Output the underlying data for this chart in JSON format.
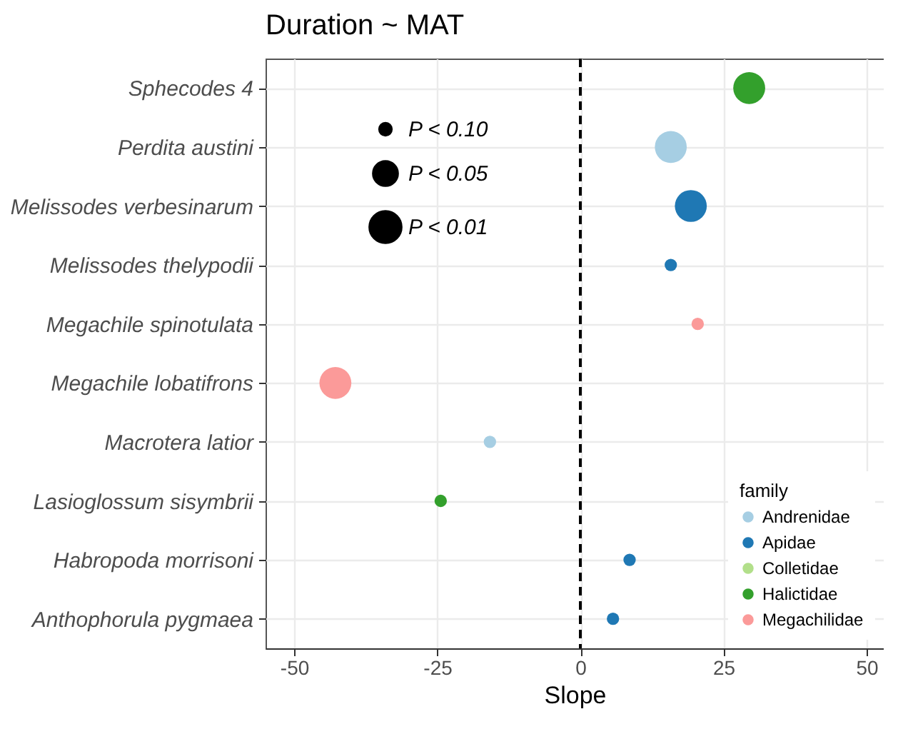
{
  "chart_data": {
    "type": "scatter",
    "title": "Duration ~ MAT",
    "xlabel": "Slope",
    "legend_title": "family",
    "legend": "bottom right",
    "grid": true,
    "orientation": "horizontal",
    "categories": [
      "Sphecodes 4",
      "Perdita austini",
      "Melissodes verbesinarum",
      "Melissodes thelypodii",
      "Megachile spinotulata",
      "Megachile lobatifrons",
      "Macrotera latior",
      "Lasioglossum sisymbrii",
      "Habropoda morrisoni",
      "Anthophorula pygmaea"
    ],
    "xlim": [
      -55,
      53
    ],
    "xticks": [
      -50,
      -25,
      0,
      25,
      50
    ],
    "size_legend": [
      {
        "value": 0.15,
        "label": "P < 0.10"
      },
      {
        "value": 0.6,
        "label": "P < 0.05"
      },
      {
        "value": 1,
        "label": "P < 0.01"
      }
    ],
    "ref_lines": [
      {
        "axis": "x",
        "value": 0,
        "line_style": "dashed",
        "color": "#000000"
      }
    ],
    "series": [
      {
        "name": "Andrenidae",
        "color": "#a6cee3",
        "values": [
          null,
          15.8,
          null,
          null,
          null,
          null,
          -15.8,
          null,
          null,
          null
        ],
        "sizes": [
          null,
          1,
          null,
          null,
          null,
          null,
          0.15,
          null,
          null,
          null
        ]
      },
      {
        "name": "Apidae",
        "color": "#1f78b4",
        "values": [
          null,
          null,
          19.3,
          15.8,
          null,
          null,
          null,
          null,
          8.6,
          5.7
        ],
        "sizes": [
          null,
          null,
          1,
          0.15,
          null,
          null,
          null,
          null,
          0.15,
          0.15
        ]
      },
      {
        "name": "Colletidae",
        "color": "#b2df8a",
        "values": [
          null,
          null,
          null,
          null,
          null,
          null,
          null,
          null,
          null,
          null
        ],
        "sizes": [
          null,
          null,
          null,
          null,
          null,
          null,
          null,
          null,
          null,
          null
        ]
      },
      {
        "name": "Halictidae",
        "color": "#33a02c",
        "values": [
          29.5,
          null,
          null,
          null,
          null,
          null,
          null,
          -24.4,
          null,
          null
        ],
        "sizes": [
          1,
          null,
          null,
          null,
          null,
          null,
          null,
          0.15,
          null,
          null
        ]
      },
      {
        "name": "Megachilidae",
        "color": "#fb9a99",
        "values": [
          null,
          null,
          null,
          null,
          20.5,
          -42.8,
          null,
          null,
          null,
          null
        ],
        "sizes": [
          null,
          null,
          null,
          null,
          0.15,
          1,
          null,
          null,
          null,
          null
        ]
      }
    ]
  }
}
